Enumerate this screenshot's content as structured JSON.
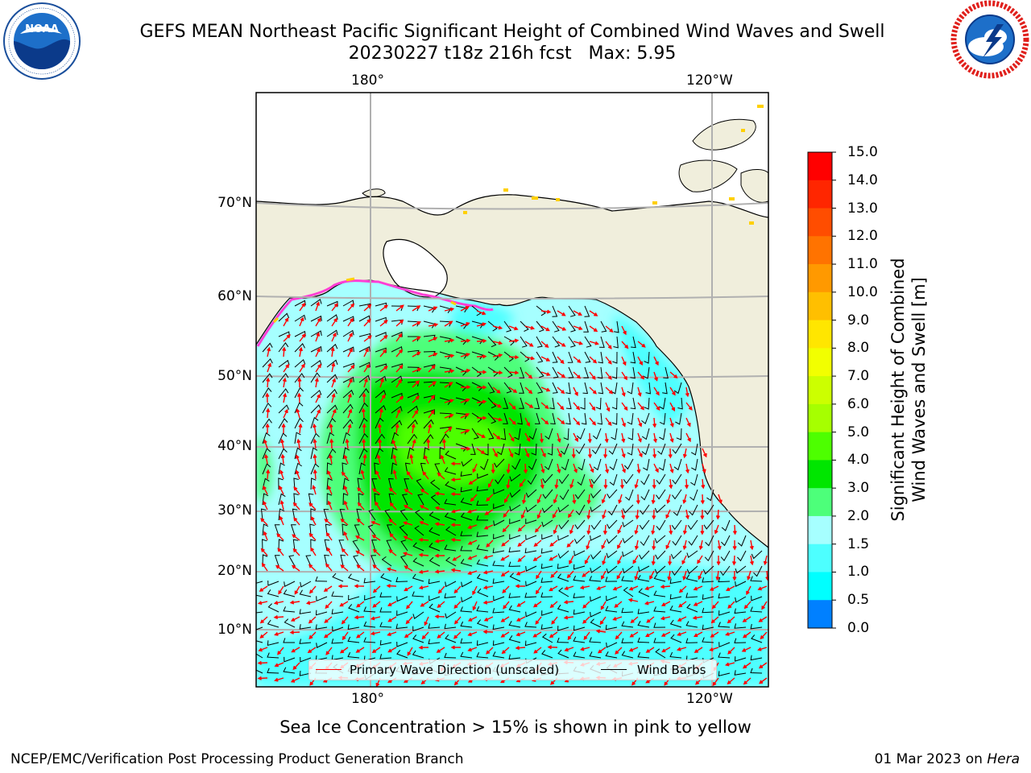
{
  "title_line1": "GEFS MEAN Northeast Pacific Significant Height of Combined Wind Waves and Swell",
  "title_line2": "20230227 t18z 216h fcst   Max: 5.95",
  "logos": {
    "left": "NOAA",
    "right": "NATIONAL WEATHER SERVICE"
  },
  "map": {
    "lon_labels_top": [
      "180°",
      "120°W"
    ],
    "lon_labels_bottom": [
      "180°",
      "120°W"
    ],
    "lat_labels": [
      "70°N",
      "60°N",
      "50°N",
      "40°N",
      "30°N",
      "20°N",
      "10°N"
    ],
    "max_value": 5.95
  },
  "colorbar": {
    "title_line1": "Significant Height of Combined",
    "title_line2": "Wind Waves and Swell [m]",
    "ticks": [
      "15.0",
      "14.0",
      "13.0",
      "12.0",
      "11.0",
      "10.0",
      "9.0",
      "8.0",
      "7.0",
      "6.0",
      "5.0",
      "4.0",
      "3.0",
      "2.0",
      "1.5",
      "1.0",
      "0.5",
      "0.0"
    ],
    "colors": [
      "#ff0000",
      "#ff2600",
      "#ff4d00",
      "#ff7300",
      "#ff9900",
      "#ffbf00",
      "#ffe600",
      "#f2ff00",
      "#ccff00",
      "#a6ff00",
      "#4dff00",
      "#00e600",
      "#4dff7a",
      "#a6ffff",
      "#4dffff",
      "#00ffff",
      "#0080ff",
      "#0000ff"
    ]
  },
  "legend": {
    "wave_direction": "Primary Wave Direction (unscaled)",
    "wind_barbs": "Wind Barbs",
    "wave_color": "#ff0000",
    "barb_color": "#000000"
  },
  "footnote": "Sea Ice Concentration > 15% is shown in pink to yellow",
  "footer_left": "NCEP/EMC/Verification Post Processing Product Generation Branch",
  "footer_right_date": "01 Mar 2023 on ",
  "footer_right_host": "Hera",
  "colors": {
    "land": "#f0eedc",
    "ocean_low": "#a6ffff",
    "ocean_mid": "#4dffff",
    "swell_high": "#4dff7a",
    "swell_peak": "#00e600"
  }
}
